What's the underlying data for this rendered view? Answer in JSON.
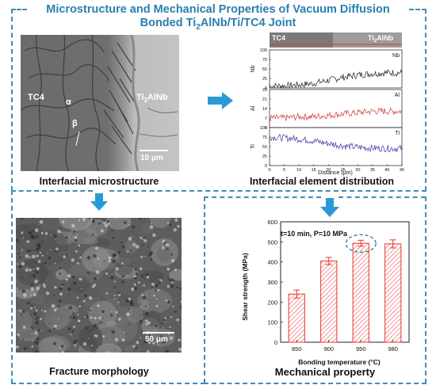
{
  "title": {
    "line1": "Microstructure and Mechanical Properties of Vacuum Diffusion",
    "line2_before": "Bonded Ti",
    "line2_sub": "2",
    "line2_after": "AlNb/Ti/TC4 Joint"
  },
  "panels": {
    "microstructure": {
      "caption": "Interfacial microstructure",
      "labels": {
        "tc4": "TC4",
        "alpha": "α",
        "beta": "β",
        "ti2alnb_before": "Ti",
        "ti2alnb_sub": "2",
        "ti2alnb_after": "AlNb"
      },
      "scale_bar": "10 μm"
    },
    "element_distribution": {
      "caption": "Interfacial element distribution",
      "strip_left": "TC4",
      "strip_right_before": "Ti",
      "strip_right_sub": "2",
      "strip_right_after": "AlNb",
      "xlabel": "Distance (μm)"
    },
    "fracture": {
      "caption": "Fracture morphology",
      "scale_bar": "50 μm"
    },
    "mechanical": {
      "caption": "Mechanical property",
      "annotation": "t=10 min, P=10 MPa"
    }
  },
  "colors": {
    "accent": "#2a7fb0",
    "dash": "#3d8cc0",
    "bar": "#e8342e",
    "nb_line": "#222222",
    "al_line": "#d23a3a",
    "ti_line": "#3a3aa8"
  },
  "chart_data": [
    {
      "type": "line",
      "xlabel": "Distance (μm)",
      "xlim": [
        0,
        45
      ],
      "xticks": [
        0,
        5,
        10,
        15,
        20,
        25,
        30,
        35,
        40,
        45
      ],
      "panels": [
        {
          "name": "Nb",
          "ylabel": "Nb",
          "ylim": [
            0,
            100
          ],
          "yticks": [
            0,
            25,
            50,
            75,
            100
          ],
          "x": [
            0,
            5,
            10,
            15,
            20,
            25,
            30,
            35,
            40,
            45
          ],
          "values": [
            5,
            6,
            8,
            12,
            20,
            28,
            34,
            38,
            40,
            40
          ]
        },
        {
          "name": "Al",
          "ylabel": "Al",
          "ylim": [
            0,
            28
          ],
          "yticks": [
            0,
            7,
            14,
            21,
            28
          ],
          "x": [
            0,
            5,
            10,
            15,
            20,
            25,
            30,
            35,
            40,
            45
          ],
          "values": [
            7,
            7,
            8,
            8,
            9,
            10,
            11,
            12,
            12,
            12
          ]
        },
        {
          "name": "Ti",
          "ylabel": "Ti",
          "ylim": [
            0,
            100
          ],
          "yticks": [
            0,
            25,
            50,
            75,
            100
          ],
          "x": [
            0,
            5,
            10,
            15,
            20,
            25,
            30,
            35,
            40,
            45
          ],
          "values": [
            75,
            73,
            70,
            65,
            58,
            52,
            48,
            46,
            45,
            45
          ]
        }
      ]
    },
    {
      "type": "bar",
      "categories": [
        "850",
        "900",
        "950",
        "980"
      ],
      "values": [
        240,
        405,
        493,
        490
      ],
      "errors": [
        20,
        18,
        15,
        20
      ],
      "xlabel": "Bonding temperature (°C)",
      "ylabel": "Shear strength (MPa)",
      "ylim": [
        0,
        600
      ],
      "yticks": [
        0,
        100,
        200,
        300,
        400,
        500,
        600
      ]
    }
  ]
}
